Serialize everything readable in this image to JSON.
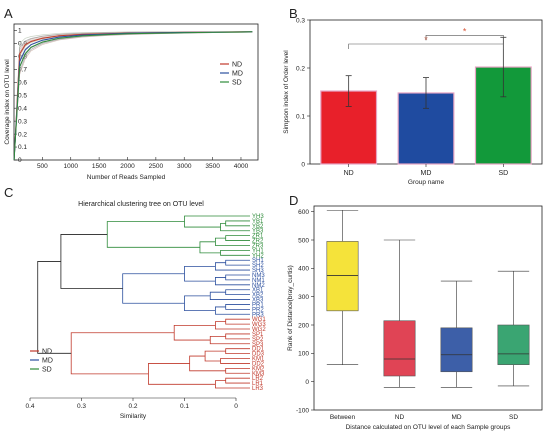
{
  "figure": {
    "panels": [
      {
        "letter": "A"
      },
      {
        "letter": "B"
      },
      {
        "letter": "C"
      },
      {
        "letter": "D"
      }
    ]
  },
  "colors": {
    "ND": "#c0392b",
    "MD": "#2b4f9e",
    "SD": "#2e8b3a",
    "bar_ND": "#e8202a",
    "bar_MD": "#1f4ba0",
    "bar_SD": "#12993a",
    "box_Between": "#f5e33a",
    "box_ND": "#e04455",
    "box_MD": "#3d5fa8",
    "box_SD": "#3aa572",
    "sig": "#d9573a"
  },
  "chart_data": [
    {
      "id": "A",
      "type": "line",
      "xlabel": "Number of Reads Sampled",
      "ylabel": "Coverage index on OTU level",
      "xlim": [
        0,
        4300
      ],
      "ylim": [
        0,
        1.05
      ],
      "xticks": [
        500,
        1000,
        1500,
        2000,
        2500,
        3000,
        3500,
        4000
      ],
      "yticks": [
        0,
        0.1,
        0.2,
        0.3,
        0.4,
        0.5,
        0.6,
        0.7,
        0.8,
        0.9,
        1
      ],
      "legend_position": "right",
      "series": [
        {
          "name": "ND",
          "color": "#c0392b",
          "x": [
            1,
            100,
            200,
            300,
            500,
            800,
            1200,
            1600,
            2000,
            2500,
            3000,
            3500,
            4000,
            4200
          ],
          "y": [
            0,
            0.82,
            0.89,
            0.915,
            0.94,
            0.96,
            0.97,
            0.975,
            0.98,
            0.983,
            0.986,
            0.988,
            0.99,
            0.99
          ]
        },
        {
          "name": "MD",
          "color": "#2b4f9e",
          "x": [
            1,
            100,
            200,
            300,
            500,
            800,
            1200,
            1600,
            2000,
            2500,
            3000,
            3500,
            4000,
            4200
          ],
          "y": [
            0,
            0.76,
            0.85,
            0.89,
            0.925,
            0.95,
            0.965,
            0.972,
            0.978,
            0.982,
            0.985,
            0.987,
            0.989,
            0.99
          ]
        },
        {
          "name": "SD",
          "color": "#2e8b3a",
          "x": [
            1,
            100,
            200,
            300,
            500,
            800,
            1200,
            1600,
            2000,
            2500,
            3000,
            3500,
            4000,
            4200
          ],
          "y": [
            0,
            0.72,
            0.82,
            0.87,
            0.91,
            0.94,
            0.958,
            0.967,
            0.974,
            0.979,
            0.983,
            0.986,
            0.988,
            0.99
          ]
        }
      ]
    },
    {
      "id": "B",
      "type": "bar",
      "xlabel": "Group name",
      "ylabel": "Simpson index of Order level",
      "ylim": [
        0,
        0.3
      ],
      "yticks": [
        0,
        0.1,
        0.2,
        0.3
      ],
      "categories": [
        "ND",
        "MD",
        "SD"
      ],
      "values": [
        0.152,
        0.148,
        0.202
      ],
      "errors": [
        0.032,
        0.032,
        0.062
      ],
      "significance": [
        {
          "from": "ND",
          "to": "SD",
          "y": 0.25,
          "marker": "*"
        },
        {
          "from": "MD",
          "to": "SD",
          "y": 0.268,
          "marker": "*"
        }
      ]
    },
    {
      "id": "C",
      "type": "dendrogram",
      "title": "Hierarchical clustering tree on OTU level",
      "xlabel": "Similarity",
      "xlim": [
        0.4,
        0
      ],
      "xticks": [
        0.4,
        0.3,
        0.2,
        0.1,
        0
      ],
      "legend_position": "bottom-left",
      "legend": [
        "ND",
        "MD",
        "SD"
      ],
      "leaves": [
        {
          "label": "YH3",
          "group": "SD"
        },
        {
          "label": "YB1",
          "group": "SD"
        },
        {
          "label": "YB2",
          "group": "SD"
        },
        {
          "label": "YB3",
          "group": "SD"
        },
        {
          "label": "ZR1",
          "group": "SD"
        },
        {
          "label": "ZR2",
          "group": "SD"
        },
        {
          "label": "ZR3",
          "group": "SD"
        },
        {
          "label": "YH1",
          "group": "SD"
        },
        {
          "label": "YH2",
          "group": "SD"
        },
        {
          "label": "SH1",
          "group": "MD"
        },
        {
          "label": "SH2",
          "group": "MD"
        },
        {
          "label": "SH3",
          "group": "MD"
        },
        {
          "label": "NM3",
          "group": "MD"
        },
        {
          "label": "NM1",
          "group": "MD"
        },
        {
          "label": "NM2",
          "group": "MD"
        },
        {
          "label": "XB1",
          "group": "MD"
        },
        {
          "label": "XB2",
          "group": "MD"
        },
        {
          "label": "XB3",
          "group": "MD"
        },
        {
          "label": "PR1",
          "group": "MD"
        },
        {
          "label": "PR2",
          "group": "MD"
        },
        {
          "label": "PR3",
          "group": "MD"
        },
        {
          "label": "WG1",
          "group": "ND"
        },
        {
          "label": "WG3",
          "group": "ND"
        },
        {
          "label": "WG2",
          "group": "ND"
        },
        {
          "label": "SP1",
          "group": "ND"
        },
        {
          "label": "SP2",
          "group": "ND"
        },
        {
          "label": "SP3",
          "group": "ND"
        },
        {
          "label": "DD1",
          "group": "ND"
        },
        {
          "label": "DD3",
          "group": "ND"
        },
        {
          "label": "KM1",
          "group": "ND"
        },
        {
          "label": "DD2",
          "group": "ND"
        },
        {
          "label": "KM2",
          "group": "ND"
        },
        {
          "label": "KM3",
          "group": "ND"
        },
        {
          "label": "LR2",
          "group": "ND"
        },
        {
          "label": "LR1",
          "group": "ND"
        },
        {
          "label": "LR3",
          "group": "ND"
        }
      ]
    },
    {
      "id": "D",
      "type": "box",
      "xlabel": "Distance calculated on OTU level of each Sample groups",
      "ylabel": "Rank of Distance(bray_curtis)",
      "ylim": [
        -100,
        620
      ],
      "yticks": [
        -100,
        0,
        100,
        200,
        300,
        400,
        500,
        600
      ],
      "categories": [
        "Between",
        "ND",
        "MD",
        "SD"
      ],
      "boxes": [
        {
          "name": "Between",
          "min": 60,
          "q1": 250,
          "median": 375,
          "q3": 495,
          "max": 605
        },
        {
          "name": "ND",
          "min": -20,
          "q1": 20,
          "median": 80,
          "q3": 215,
          "max": 500
        },
        {
          "name": "MD",
          "min": -20,
          "q1": 35,
          "median": 95,
          "q3": 190,
          "max": 355
        },
        {
          "name": "SD",
          "min": -15,
          "q1": 60,
          "median": 98,
          "q3": 200,
          "max": 390
        }
      ]
    }
  ]
}
